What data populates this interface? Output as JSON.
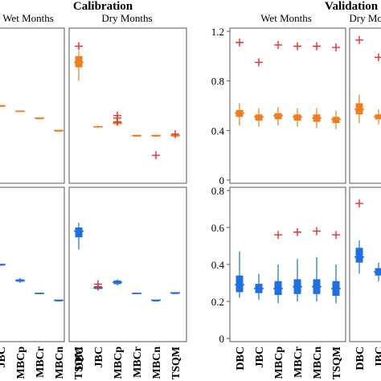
{
  "section_titles": {
    "calibration": "Calibration",
    "validation": "Validation"
  },
  "colors": {
    "orange_box": "#f07d20",
    "blue_box": "#1f6fe0",
    "outlier": "#e8302a",
    "frame": "#555555"
  },
  "chart_data": [
    {
      "panel": "calibration-wet-top",
      "type": "box",
      "title": "Wet Months",
      "categories": [
        "DBC",
        "JBC",
        "MBCp",
        "MBCr",
        "MBCn",
        "TSQM"
      ],
      "boxes": [
        {
          "median": 0.62,
          "q1": 0.62,
          "q3": 0.62,
          "lo": 0.62,
          "hi": 0.62
        },
        {
          "median": 0.6,
          "q1": 0.6,
          "q3": 0.6,
          "lo": 0.6,
          "hi": 0.6
        },
        {
          "median": 0.555,
          "q1": 0.55,
          "q3": 0.56,
          "lo": 0.55,
          "hi": 0.56
        },
        {
          "median": 0.5,
          "q1": 0.5,
          "q3": 0.5,
          "lo": 0.5,
          "hi": 0.5
        },
        {
          "median": 0.4,
          "q1": 0.4,
          "q3": 0.4,
          "lo": 0.4,
          "hi": 0.4
        },
        {
          "median": 0.51,
          "q1": 0.51,
          "q3": 0.51,
          "lo": 0.51,
          "hi": 0.51
        }
      ],
      "outliers": [
        [],
        [],
        [],
        [],
        [],
        []
      ]
    },
    {
      "panel": "calibration-dry-top",
      "type": "box",
      "title": "Dry Months",
      "categories": [
        "DBC",
        "JBC",
        "MBCp",
        "MBCr",
        "MBCn",
        "TSQM"
      ],
      "boxes": [
        {
          "median": 0.95,
          "q1": 0.91,
          "q3": 1.0,
          "lo": 0.8,
          "hi": 1.04
        },
        {
          "median": 0.43,
          "q1": 0.425,
          "q3": 0.435,
          "lo": 0.42,
          "hi": 0.44
        },
        {
          "median": 0.46,
          "q1": 0.45,
          "q3": 0.47,
          "lo": 0.44,
          "hi": 0.48
        },
        {
          "median": 0.36,
          "q1": 0.36,
          "q3": 0.36,
          "lo": 0.36,
          "hi": 0.36
        },
        {
          "median": 0.36,
          "q1": 0.36,
          "q3": 0.36,
          "lo": 0.36,
          "hi": 0.36
        },
        {
          "median": 0.36,
          "q1": 0.36,
          "q3": 0.36,
          "lo": 0.36,
          "hi": 0.36
        }
      ],
      "outliers": [
        [
          1.08
        ],
        [],
        [
          0.52,
          0.5,
          0.47
        ],
        [],
        [
          0.2
        ],
        [
          0.37
        ]
      ]
    },
    {
      "panel": "calibration-wet-bottom",
      "type": "box",
      "categories": [
        "DBC",
        "JBC",
        "MBCp",
        "MBCr",
        "MBCn",
        "TSQM"
      ],
      "boxes": [
        {
          "median": 0.62,
          "q1": 0.62,
          "q3": 0.62,
          "lo": 0.62,
          "hi": 0.62
        },
        {
          "median": 0.6,
          "q1": 0.6,
          "q3": 0.6,
          "lo": 0.6,
          "hi": 0.6
        },
        {
          "median": 0.47,
          "q1": 0.46,
          "q3": 0.48,
          "lo": 0.45,
          "hi": 0.49
        },
        {
          "median": 0.365,
          "q1": 0.36,
          "q3": 0.37,
          "lo": 0.36,
          "hi": 0.37
        },
        {
          "median": 0.31,
          "q1": 0.31,
          "q3": 0.31,
          "lo": 0.31,
          "hi": 0.31
        },
        {
          "median": 0.37,
          "q1": 0.37,
          "q3": 0.37,
          "lo": 0.37,
          "hi": 0.37
        }
      ],
      "outliers": [
        [],
        [],
        [],
        [],
        [],
        []
      ]
    },
    {
      "panel": "calibration-dry-bottom",
      "type": "box",
      "categories": [
        "DBC",
        "JBC",
        "MBCp",
        "MBCr",
        "MBCn",
        "TSQM"
      ],
      "boxes": [
        {
          "median": 0.87,
          "q1": 0.82,
          "q3": 0.9,
          "lo": 0.72,
          "hi": 0.94
        },
        {
          "median": 0.41,
          "q1": 0.4,
          "q3": 0.42,
          "lo": 0.4,
          "hi": 0.42
        },
        {
          "median": 0.455,
          "q1": 0.44,
          "q3": 0.47,
          "lo": 0.43,
          "hi": 0.48
        },
        {
          "median": 0.365,
          "q1": 0.36,
          "q3": 0.37,
          "lo": 0.36,
          "hi": 0.37
        },
        {
          "median": 0.31,
          "q1": 0.31,
          "q3": 0.31,
          "lo": 0.31,
          "hi": 0.31
        },
        {
          "median": 0.37,
          "q1": 0.37,
          "q3": 0.37,
          "lo": 0.37,
          "hi": 0.37
        }
      ],
      "outliers": [
        [],
        [
          0.44,
          0.42
        ],
        [],
        [],
        [],
        []
      ]
    },
    {
      "panel": "validation-wet-top",
      "type": "box",
      "title": "Wet Months",
      "categories": [
        "DBC",
        "JBC",
        "MBCp",
        "MBCr",
        "MBCn",
        "TSQM"
      ],
      "ylim": [
        0,
        1.2
      ],
      "yticks": [
        0,
        0.4,
        0.8,
        1.2
      ],
      "ytick_labels": [
        "0",
        "0.4",
        "0.8",
        "1.2"
      ],
      "boxes": [
        {
          "median": 0.54,
          "q1": 0.51,
          "q3": 0.565,
          "lo": 0.44,
          "hi": 0.62
        },
        {
          "median": 0.51,
          "q1": 0.48,
          "q3": 0.53,
          "lo": 0.43,
          "hi": 0.58
        },
        {
          "median": 0.52,
          "q1": 0.49,
          "q3": 0.54,
          "lo": 0.44,
          "hi": 0.59
        },
        {
          "median": 0.51,
          "q1": 0.48,
          "q3": 0.53,
          "lo": 0.43,
          "hi": 0.58
        },
        {
          "median": 0.5,
          "q1": 0.47,
          "q3": 0.53,
          "lo": 0.42,
          "hi": 0.58
        },
        {
          "median": 0.49,
          "q1": 0.46,
          "q3": 0.51,
          "lo": 0.41,
          "hi": 0.56
        }
      ],
      "outliers": [
        [
          1.11
        ],
        [
          0.95
        ],
        [
          1.09
        ],
        [
          1.08
        ],
        [
          1.08
        ],
        [
          1.07
        ]
      ]
    },
    {
      "panel": "validation-dry-top",
      "type": "box",
      "title": "Dry Months",
      "categories": [
        "DBC",
        "JBC"
      ],
      "boxes": [
        {
          "median": 0.57,
          "q1": 0.53,
          "q3": 0.62,
          "lo": 0.46,
          "hi": 0.69
        },
        {
          "median": 0.51,
          "q1": 0.49,
          "q3": 0.53,
          "lo": 0.45,
          "hi": 0.57
        }
      ],
      "outliers": [
        [
          1.13
        ],
        [
          0.99
        ]
      ]
    },
    {
      "panel": "validation-wet-bottom",
      "type": "box",
      "categories": [
        "DBC",
        "JBC",
        "MBCp",
        "MBCr",
        "MBCn",
        "TSQM"
      ],
      "ylim": [
        0,
        0.8
      ],
      "yticks": [
        0,
        0.2,
        0.4,
        0.6,
        0.8
      ],
      "ytick_labels": [
        "0",
        "0.2",
        "0.4",
        "0.6",
        "0.8"
      ],
      "boxes": [
        {
          "median": 0.29,
          "q1": 0.25,
          "q3": 0.34,
          "lo": 0.22,
          "hi": 0.47
        },
        {
          "median": 0.27,
          "q1": 0.245,
          "q3": 0.295,
          "lo": 0.21,
          "hi": 0.35
        },
        {
          "median": 0.27,
          "q1": 0.235,
          "q3": 0.31,
          "lo": 0.19,
          "hi": 0.4
        },
        {
          "median": 0.28,
          "q1": 0.24,
          "q3": 0.32,
          "lo": 0.2,
          "hi": 0.43
        },
        {
          "median": 0.28,
          "q1": 0.24,
          "q3": 0.32,
          "lo": 0.2,
          "hi": 0.44
        },
        {
          "median": 0.27,
          "q1": 0.23,
          "q3": 0.31,
          "lo": 0.19,
          "hi": 0.4
        }
      ],
      "outliers": [
        [],
        [],
        [
          0.56
        ],
        [
          0.575
        ],
        [
          0.58
        ],
        [
          0.56
        ]
      ]
    },
    {
      "panel": "validation-dry-bottom",
      "type": "box",
      "categories": [
        "DBC",
        "JBC"
      ],
      "boxes": [
        {
          "median": 0.44,
          "q1": 0.41,
          "q3": 0.49,
          "lo": 0.35,
          "hi": 0.53
        },
        {
          "median": 0.36,
          "q1": 0.34,
          "q3": 0.38,
          "lo": 0.31,
          "hi": 0.41
        }
      ],
      "outliers": [
        [
          0.73
        ],
        []
      ]
    }
  ]
}
